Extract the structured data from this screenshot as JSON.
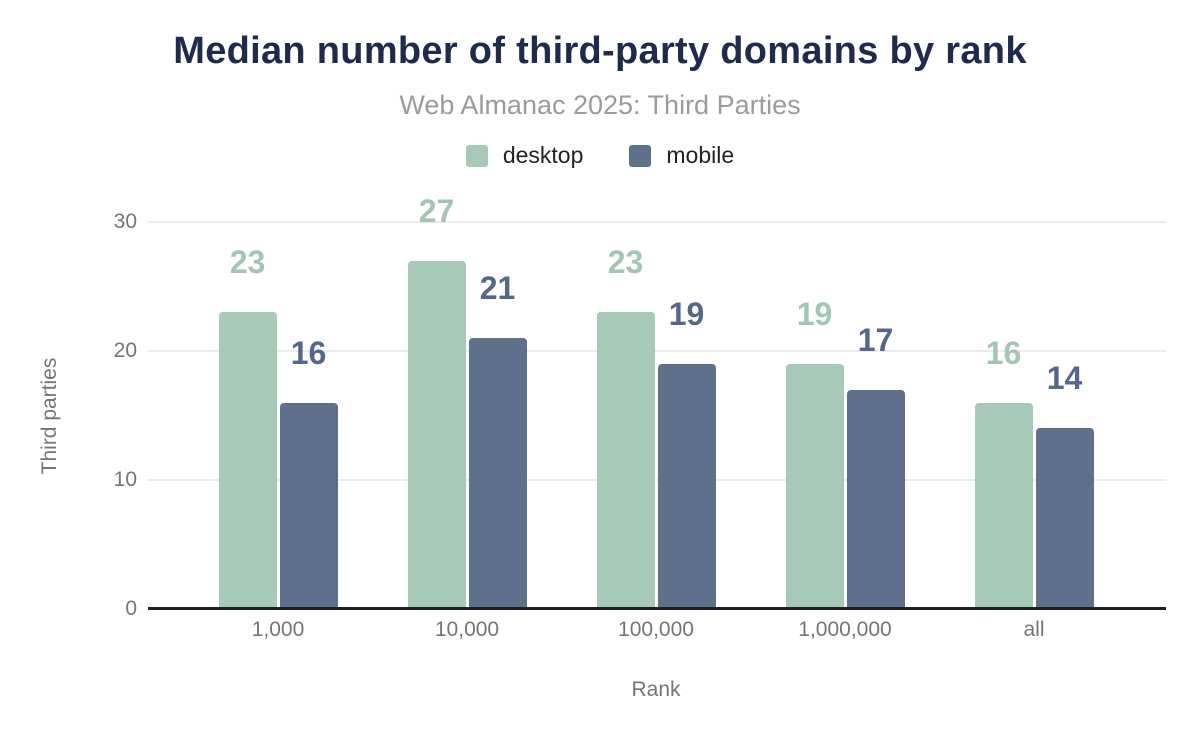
{
  "chart_data": {
    "type": "bar",
    "title": "Median number of third-party domains by rank",
    "subtitle": "Web Almanac 2025: Third Parties",
    "xlabel": "Rank",
    "ylabel": "Third parties",
    "categories": [
      "1,000",
      "10,000",
      "100,000",
      "1,000,000",
      "all"
    ],
    "series": [
      {
        "name": "desktop",
        "values": [
          23,
          27,
          23,
          19,
          16
        ],
        "color": "#a6c9b8",
        "label_color": "#a2c6b3"
      },
      {
        "name": "mobile",
        "values": [
          16,
          21,
          19,
          17,
          14
        ],
        "color": "#5f708c",
        "label_color": "#56688a"
      }
    ],
    "ylim": [
      0,
      32
    ],
    "yticks": [
      0,
      10,
      20,
      30
    ],
    "grid": "horizontal",
    "legend_position": "top",
    "value_labels": true
  },
  "colors": {
    "background": "#ffffff",
    "title": "#1e2b4d",
    "subtitle": "#9b9b9b",
    "axis_text": "#757575",
    "legend_text": "#222222",
    "gridline": "#ececec",
    "axis_line": "#212121"
  }
}
